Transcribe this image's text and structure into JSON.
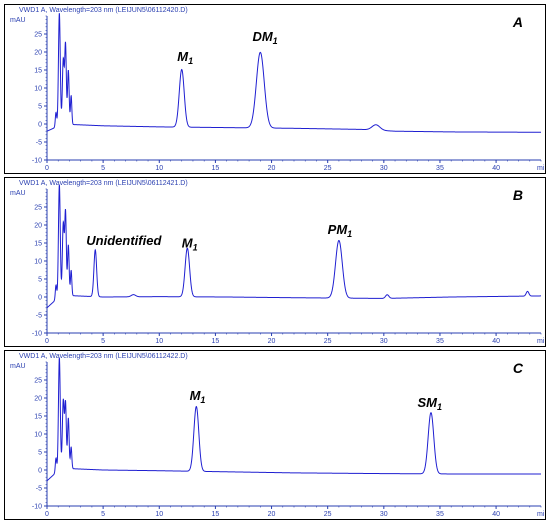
{
  "chart_data": [
    {
      "type": "line",
      "header": "VWD1 A, Wavelength=203 nm (LEIJUN5\\06112420.D)",
      "panel_label": "A",
      "ylabel": "mAU",
      "xlabel_tail": "mi",
      "xlim": [
        0,
        44
      ],
      "ylim": [
        -10,
        30
      ],
      "x_ticks": [
        "0",
        "5",
        "10",
        "15",
        "20",
        "25",
        "30",
        "35",
        "40"
      ],
      "y_ticks": [
        "-10",
        "-5",
        "0",
        "5",
        "10",
        "15",
        "20",
        "25"
      ],
      "color": "#1f1fd1",
      "baseline": [
        [
          0,
          -2
        ],
        [
          0.7,
          -1
        ],
        [
          1.2,
          0
        ],
        [
          5,
          -0.5
        ],
        [
          10,
          -0.8
        ],
        [
          16,
          -1
        ],
        [
          22,
          -1.2
        ],
        [
          28,
          -1.5
        ],
        [
          31,
          -2
        ],
        [
          36,
          -2.2
        ],
        [
          44,
          -2.3
        ]
      ],
      "peaks": [
        {
          "x": 1.1,
          "h": 31,
          "w": 0.08
        },
        {
          "x": 1.45,
          "h": 18,
          "w": 0.08
        },
        {
          "x": 1.65,
          "h": 22,
          "w": 0.07
        },
        {
          "x": 1.9,
          "h": 15,
          "w": 0.07
        },
        {
          "x": 2.15,
          "h": 8,
          "w": 0.06
        },
        {
          "x": 0.8,
          "h": 4,
          "w": 0.06
        },
        {
          "x": 12.0,
          "h": 16,
          "w": 0.22
        },
        {
          "x": 19.0,
          "h": 21,
          "w": 0.35
        },
        {
          "x": 29.3,
          "h": 1.5,
          "w": 0.35
        }
      ],
      "annotations": [
        {
          "main": "M",
          "sub": "1",
          "x": 11.6,
          "y": 17.5
        },
        {
          "main": "DM",
          "sub": "1",
          "x": 18.3,
          "y": 23
        }
      ]
    },
    {
      "type": "line",
      "header": "VWD1 A, Wavelength=203 nm (LEIJUN5\\06112421.D)",
      "panel_label": "B",
      "ylabel": "mAU",
      "xlabel_tail": "mi",
      "xlim": [
        0,
        44
      ],
      "ylim": [
        -10,
        30
      ],
      "x_ticks": [
        "0",
        "5",
        "10",
        "15",
        "20",
        "25",
        "30",
        "35",
        "40"
      ],
      "y_ticks": [
        "-10",
        "-5",
        "0",
        "5",
        "10",
        "15",
        "20",
        "25"
      ],
      "color": "#1f1fd1",
      "baseline": [
        [
          0,
          -3
        ],
        [
          0.7,
          -1
        ],
        [
          1.2,
          0.5
        ],
        [
          5,
          0
        ],
        [
          10,
          0.1
        ],
        [
          16,
          0
        ],
        [
          22,
          -0.2
        ],
        [
          30,
          -0.4
        ],
        [
          36,
          0
        ],
        [
          44,
          0.3
        ]
      ],
      "peaks": [
        {
          "x": 1.1,
          "h": 31,
          "w": 0.08
        },
        {
          "x": 1.45,
          "h": 20,
          "w": 0.08
        },
        {
          "x": 1.65,
          "h": 23,
          "w": 0.07
        },
        {
          "x": 1.9,
          "h": 14,
          "w": 0.07
        },
        {
          "x": 2.15,
          "h": 7,
          "w": 0.06
        },
        {
          "x": 0.8,
          "h": 4,
          "w": 0.06
        },
        {
          "x": 4.3,
          "h": 13,
          "w": 0.12
        },
        {
          "x": 7.7,
          "h": 0.6,
          "w": 0.2
        },
        {
          "x": 12.5,
          "h": 13.5,
          "w": 0.2
        },
        {
          "x": 26.0,
          "h": 16,
          "w": 0.3
        },
        {
          "x": 30.3,
          "h": 1,
          "w": 0.15
        },
        {
          "x": 42.8,
          "h": 1.3,
          "w": 0.12
        }
      ],
      "annotations": [
        {
          "main": "Unidentified",
          "sub": "",
          "x": 3.5,
          "y": 14.5
        },
        {
          "main": "M",
          "sub": "1",
          "x": 12.0,
          "y": 13.8
        },
        {
          "main": "PM",
          "sub": "1",
          "x": 25.0,
          "y": 17.5
        }
      ]
    },
    {
      "type": "line",
      "header": "VWD1 A, Wavelength=203 nm (LEIJUN5\\06112422.D)",
      "panel_label": "C",
      "ylabel": "mAU",
      "xlabel_tail": "mi",
      "xlim": [
        0,
        44
      ],
      "ylim": [
        -10,
        30
      ],
      "x_ticks": [
        "0",
        "5",
        "10",
        "15",
        "20",
        "25",
        "30",
        "35",
        "40"
      ],
      "y_ticks": [
        "-10",
        "-5",
        "0",
        "5",
        "10",
        "15",
        "20",
        "25"
      ],
      "color": "#1f1fd1",
      "baseline": [
        [
          0,
          -3
        ],
        [
          0.7,
          -1
        ],
        [
          1.2,
          0.5
        ],
        [
          5,
          0
        ],
        [
          10,
          -0.2
        ],
        [
          16,
          -0.5
        ],
        [
          22,
          -0.8
        ],
        [
          30,
          -1
        ],
        [
          36,
          -1.1
        ],
        [
          44,
          -1.1
        ]
      ],
      "peaks": [
        {
          "x": 1.1,
          "h": 31,
          "w": 0.08
        },
        {
          "x": 1.45,
          "h": 19,
          "w": 0.08
        },
        {
          "x": 1.65,
          "h": 18,
          "w": 0.07
        },
        {
          "x": 1.9,
          "h": 14,
          "w": 0.07
        },
        {
          "x": 2.15,
          "h": 6,
          "w": 0.06
        },
        {
          "x": 0.8,
          "h": 4,
          "w": 0.06
        },
        {
          "x": 13.3,
          "h": 18,
          "w": 0.22
        },
        {
          "x": 34.2,
          "h": 17,
          "w": 0.25
        }
      ],
      "annotations": [
        {
          "main": "M",
          "sub": "1",
          "x": 12.7,
          "y": 19.5
        },
        {
          "main": "SM",
          "sub": "1",
          "x": 33.0,
          "y": 17.5
        }
      ]
    }
  ]
}
